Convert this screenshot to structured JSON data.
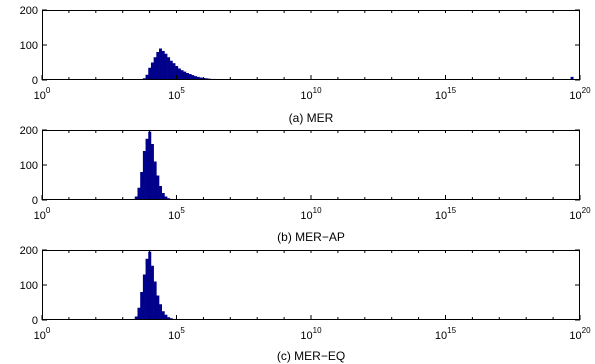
{
  "chart_data": [
    {
      "type": "bar",
      "caption": "(a) MER",
      "xscale": "log",
      "xlim": [
        1,
        1e+20
      ],
      "ylim": [
        0,
        200
      ],
      "yticks": [
        0,
        100,
        200
      ],
      "xticks": [
        {
          "base": "10",
          "exp": "0"
        },
        {
          "base": "10",
          "exp": "5"
        },
        {
          "base": "10",
          "exp": "10"
        },
        {
          "base": "10",
          "exp": "15"
        },
        {
          "base": "10",
          "exp": "20"
        }
      ],
      "bins_log10_x": [
        3.8,
        3.9,
        4.0,
        4.1,
        4.2,
        4.3,
        4.4,
        4.5,
        4.6,
        4.7,
        4.8,
        4.9,
        5.0,
        5.1,
        5.2,
        5.3,
        5.4,
        5.5,
        5.6,
        5.7,
        5.8,
        5.9,
        6.0,
        6.1,
        6.2,
        6.3,
        6.4,
        6.5,
        6.6,
        6.7,
        6.8,
        6.9,
        7.0,
        19.7
      ],
      "values": [
        5,
        15,
        35,
        50,
        65,
        80,
        90,
        83,
        75,
        65,
        55,
        48,
        40,
        33,
        28,
        24,
        20,
        17,
        14,
        11,
        9,
        7,
        6,
        5,
        4,
        3,
        3,
        2,
        2,
        2,
        1,
        1,
        1,
        9
      ]
    },
    {
      "type": "bar",
      "caption": "(b) MER−AP",
      "xscale": "log",
      "xlim": [
        1,
        1e+20
      ],
      "ylim": [
        0,
        200
      ],
      "yticks": [
        0,
        100,
        200
      ],
      "xticks": [
        {
          "base": "10",
          "exp": "0"
        },
        {
          "base": "10",
          "exp": "5"
        },
        {
          "base": "10",
          "exp": "10"
        },
        {
          "base": "10",
          "exp": "15"
        },
        {
          "base": "10",
          "exp": "20"
        }
      ],
      "bins_log10_x": [
        3.4,
        3.5,
        3.6,
        3.7,
        3.8,
        3.9,
        4.0,
        4.1,
        4.2,
        4.3,
        4.4,
        4.5,
        4.6,
        4.7,
        4.8,
        4.9,
        5.0,
        5.1,
        5.2
      ],
      "values": [
        3,
        10,
        35,
        80,
        140,
        175,
        195,
        160,
        110,
        70,
        40,
        20,
        10,
        5,
        3,
        2,
        1,
        1,
        1
      ]
    },
    {
      "type": "bar",
      "caption": "(c) MER−EQ",
      "xscale": "log",
      "xlim": [
        1,
        1e+20
      ],
      "ylim": [
        0,
        200
      ],
      "yticks": [
        0,
        100,
        200
      ],
      "xticks": [
        {
          "base": "10",
          "exp": "0"
        },
        {
          "base": "10",
          "exp": "5"
        },
        {
          "base": "10",
          "exp": "10"
        },
        {
          "base": "10",
          "exp": "15"
        },
        {
          "base": "10",
          "exp": "20"
        }
      ],
      "bins_log10_x": [
        3.4,
        3.5,
        3.6,
        3.7,
        3.8,
        3.9,
        4.0,
        4.1,
        4.2,
        4.3,
        4.4,
        4.5,
        4.6,
        4.7,
        4.8,
        4.9,
        5.0,
        5.1,
        5.2,
        5.3,
        5.4
      ],
      "values": [
        3,
        10,
        35,
        80,
        130,
        175,
        195,
        155,
        110,
        70,
        45,
        25,
        15,
        8,
        5,
        3,
        2,
        2,
        1,
        1,
        1
      ]
    }
  ]
}
